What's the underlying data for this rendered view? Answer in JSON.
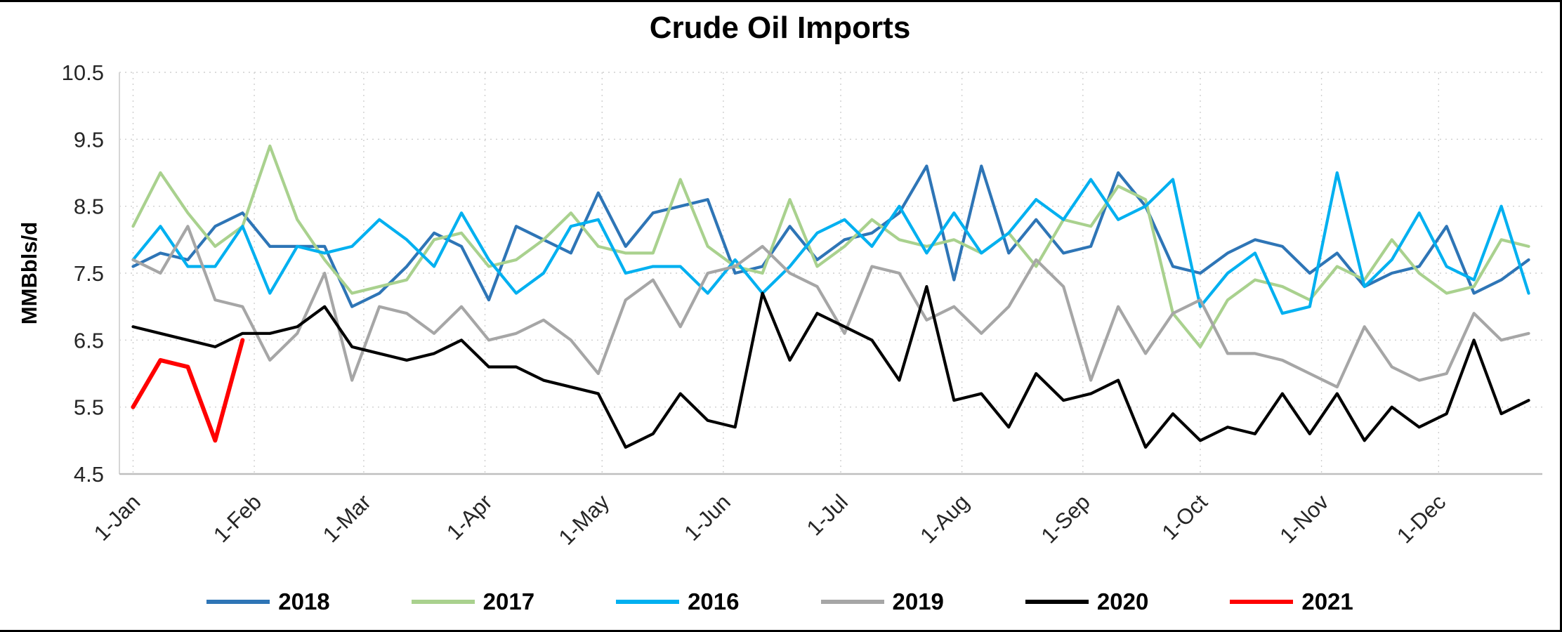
{
  "chart_data": {
    "type": "line",
    "title": "Crude Oil Imports",
    "xlabel": "",
    "ylabel": "MMBbls/d",
    "ylim": [
      4.5,
      10.5
    ],
    "y_ticks": [
      4.5,
      5.5,
      6.5,
      7.5,
      8.5,
      9.5,
      10.5
    ],
    "x_count": 52,
    "x_tick_labels": [
      "1-Jan",
      "1-Feb",
      "1-Mar",
      "1-Apr",
      "1-May",
      "1-Jun",
      "1-Jul",
      "1-Aug",
      "1-Sep",
      "1-Oct",
      "1-Nov",
      "1-Dec"
    ],
    "x_tick_positions": [
      0,
      4.43,
      8.43,
      12.86,
      17.14,
      21.57,
      25.86,
      30.29,
      34.71,
      39.0,
      43.43,
      47.71
    ],
    "grid": "dotted-horizontal-and-vertical",
    "legend_position": "bottom",
    "series": [
      {
        "name": "2018",
        "color": "#2E75B6",
        "values": [
          7.6,
          7.8,
          7.7,
          8.2,
          8.4,
          7.9,
          7.9,
          7.9,
          7.0,
          7.2,
          7.6,
          8.1,
          7.9,
          7.1,
          8.2,
          8.0,
          7.8,
          8.7,
          7.9,
          8.4,
          8.5,
          8.6,
          7.5,
          7.6,
          8.2,
          7.7,
          8.0,
          8.1,
          8.4,
          9.1,
          7.4,
          9.1,
          7.8,
          8.3,
          7.8,
          7.9,
          9.0,
          8.5,
          7.6,
          7.5,
          7.8,
          8.0,
          7.9,
          7.5,
          7.8,
          7.3,
          7.5,
          7.6,
          8.2,
          7.2,
          7.4,
          7.7
        ]
      },
      {
        "name": "2017",
        "color": "#A9D18E",
        "values": [
          8.2,
          9.0,
          8.4,
          7.9,
          8.2,
          9.4,
          8.3,
          7.7,
          7.2,
          7.3,
          7.4,
          8.0,
          8.1,
          7.6,
          7.7,
          8.0,
          8.4,
          7.9,
          7.8,
          7.8,
          8.9,
          7.9,
          7.6,
          7.5,
          8.6,
          7.6,
          7.9,
          8.3,
          8.0,
          7.9,
          8.0,
          7.8,
          8.1,
          7.6,
          8.3,
          8.2,
          8.8,
          8.6,
          6.9,
          6.4,
          7.1,
          7.4,
          7.3,
          7.1,
          7.6,
          7.4,
          8.0,
          7.5,
          7.2,
          7.3,
          8.0,
          7.9
        ]
      },
      {
        "name": "2016",
        "color": "#00B0F0",
        "values": [
          7.7,
          8.2,
          7.6,
          7.6,
          8.2,
          7.2,
          7.9,
          7.8,
          7.9,
          8.3,
          8.0,
          7.6,
          8.4,
          7.7,
          7.2,
          7.5,
          8.2,
          8.3,
          7.5,
          7.6,
          7.6,
          7.2,
          7.7,
          7.2,
          7.6,
          8.1,
          8.3,
          7.9,
          8.5,
          7.8,
          8.4,
          7.8,
          8.1,
          8.6,
          8.3,
          8.9,
          8.3,
          8.5,
          8.9,
          7.0,
          7.5,
          7.8,
          6.9,
          7.0,
          9.0,
          7.3,
          7.7,
          8.4,
          7.6,
          7.4,
          8.5,
          7.2
        ]
      },
      {
        "name": "2019",
        "color": "#A6A6A6",
        "values": [
          7.7,
          7.5,
          8.2,
          7.1,
          7.0,
          6.2,
          6.6,
          7.5,
          5.9,
          7.0,
          6.9,
          6.6,
          7.0,
          6.5,
          6.6,
          6.8,
          6.5,
          6.0,
          7.1,
          7.4,
          6.7,
          7.5,
          7.6,
          7.9,
          7.5,
          7.3,
          6.6,
          7.6,
          7.5,
          6.8,
          7.0,
          6.6,
          7.0,
          7.7,
          7.3,
          5.9,
          7.0,
          6.3,
          6.9,
          7.1,
          6.3,
          6.3,
          6.2,
          6.0,
          5.8,
          6.7,
          6.1,
          5.9,
          6.0,
          6.9,
          6.5,
          6.6
        ]
      },
      {
        "name": "2020",
        "color": "#000000",
        "values": [
          6.7,
          6.6,
          6.5,
          6.4,
          6.6,
          6.6,
          6.7,
          7.0,
          6.4,
          6.3,
          6.2,
          6.3,
          6.5,
          6.1,
          6.1,
          5.9,
          5.8,
          5.7,
          4.9,
          5.1,
          5.7,
          5.3,
          5.2,
          7.2,
          6.2,
          6.9,
          6.7,
          6.5,
          5.9,
          7.3,
          5.6,
          5.7,
          5.2,
          6.0,
          5.6,
          5.7,
          5.9,
          4.9,
          5.4,
          5.0,
          5.2,
          5.1,
          5.7,
          5.1,
          5.7,
          5.0,
          5.5,
          5.2,
          5.4,
          6.5,
          5.4,
          5.6
        ]
      },
      {
        "name": "2021",
        "color": "#FF0000",
        "values": [
          5.5,
          6.2,
          6.1,
          5.0,
          6.5
        ]
      }
    ]
  }
}
